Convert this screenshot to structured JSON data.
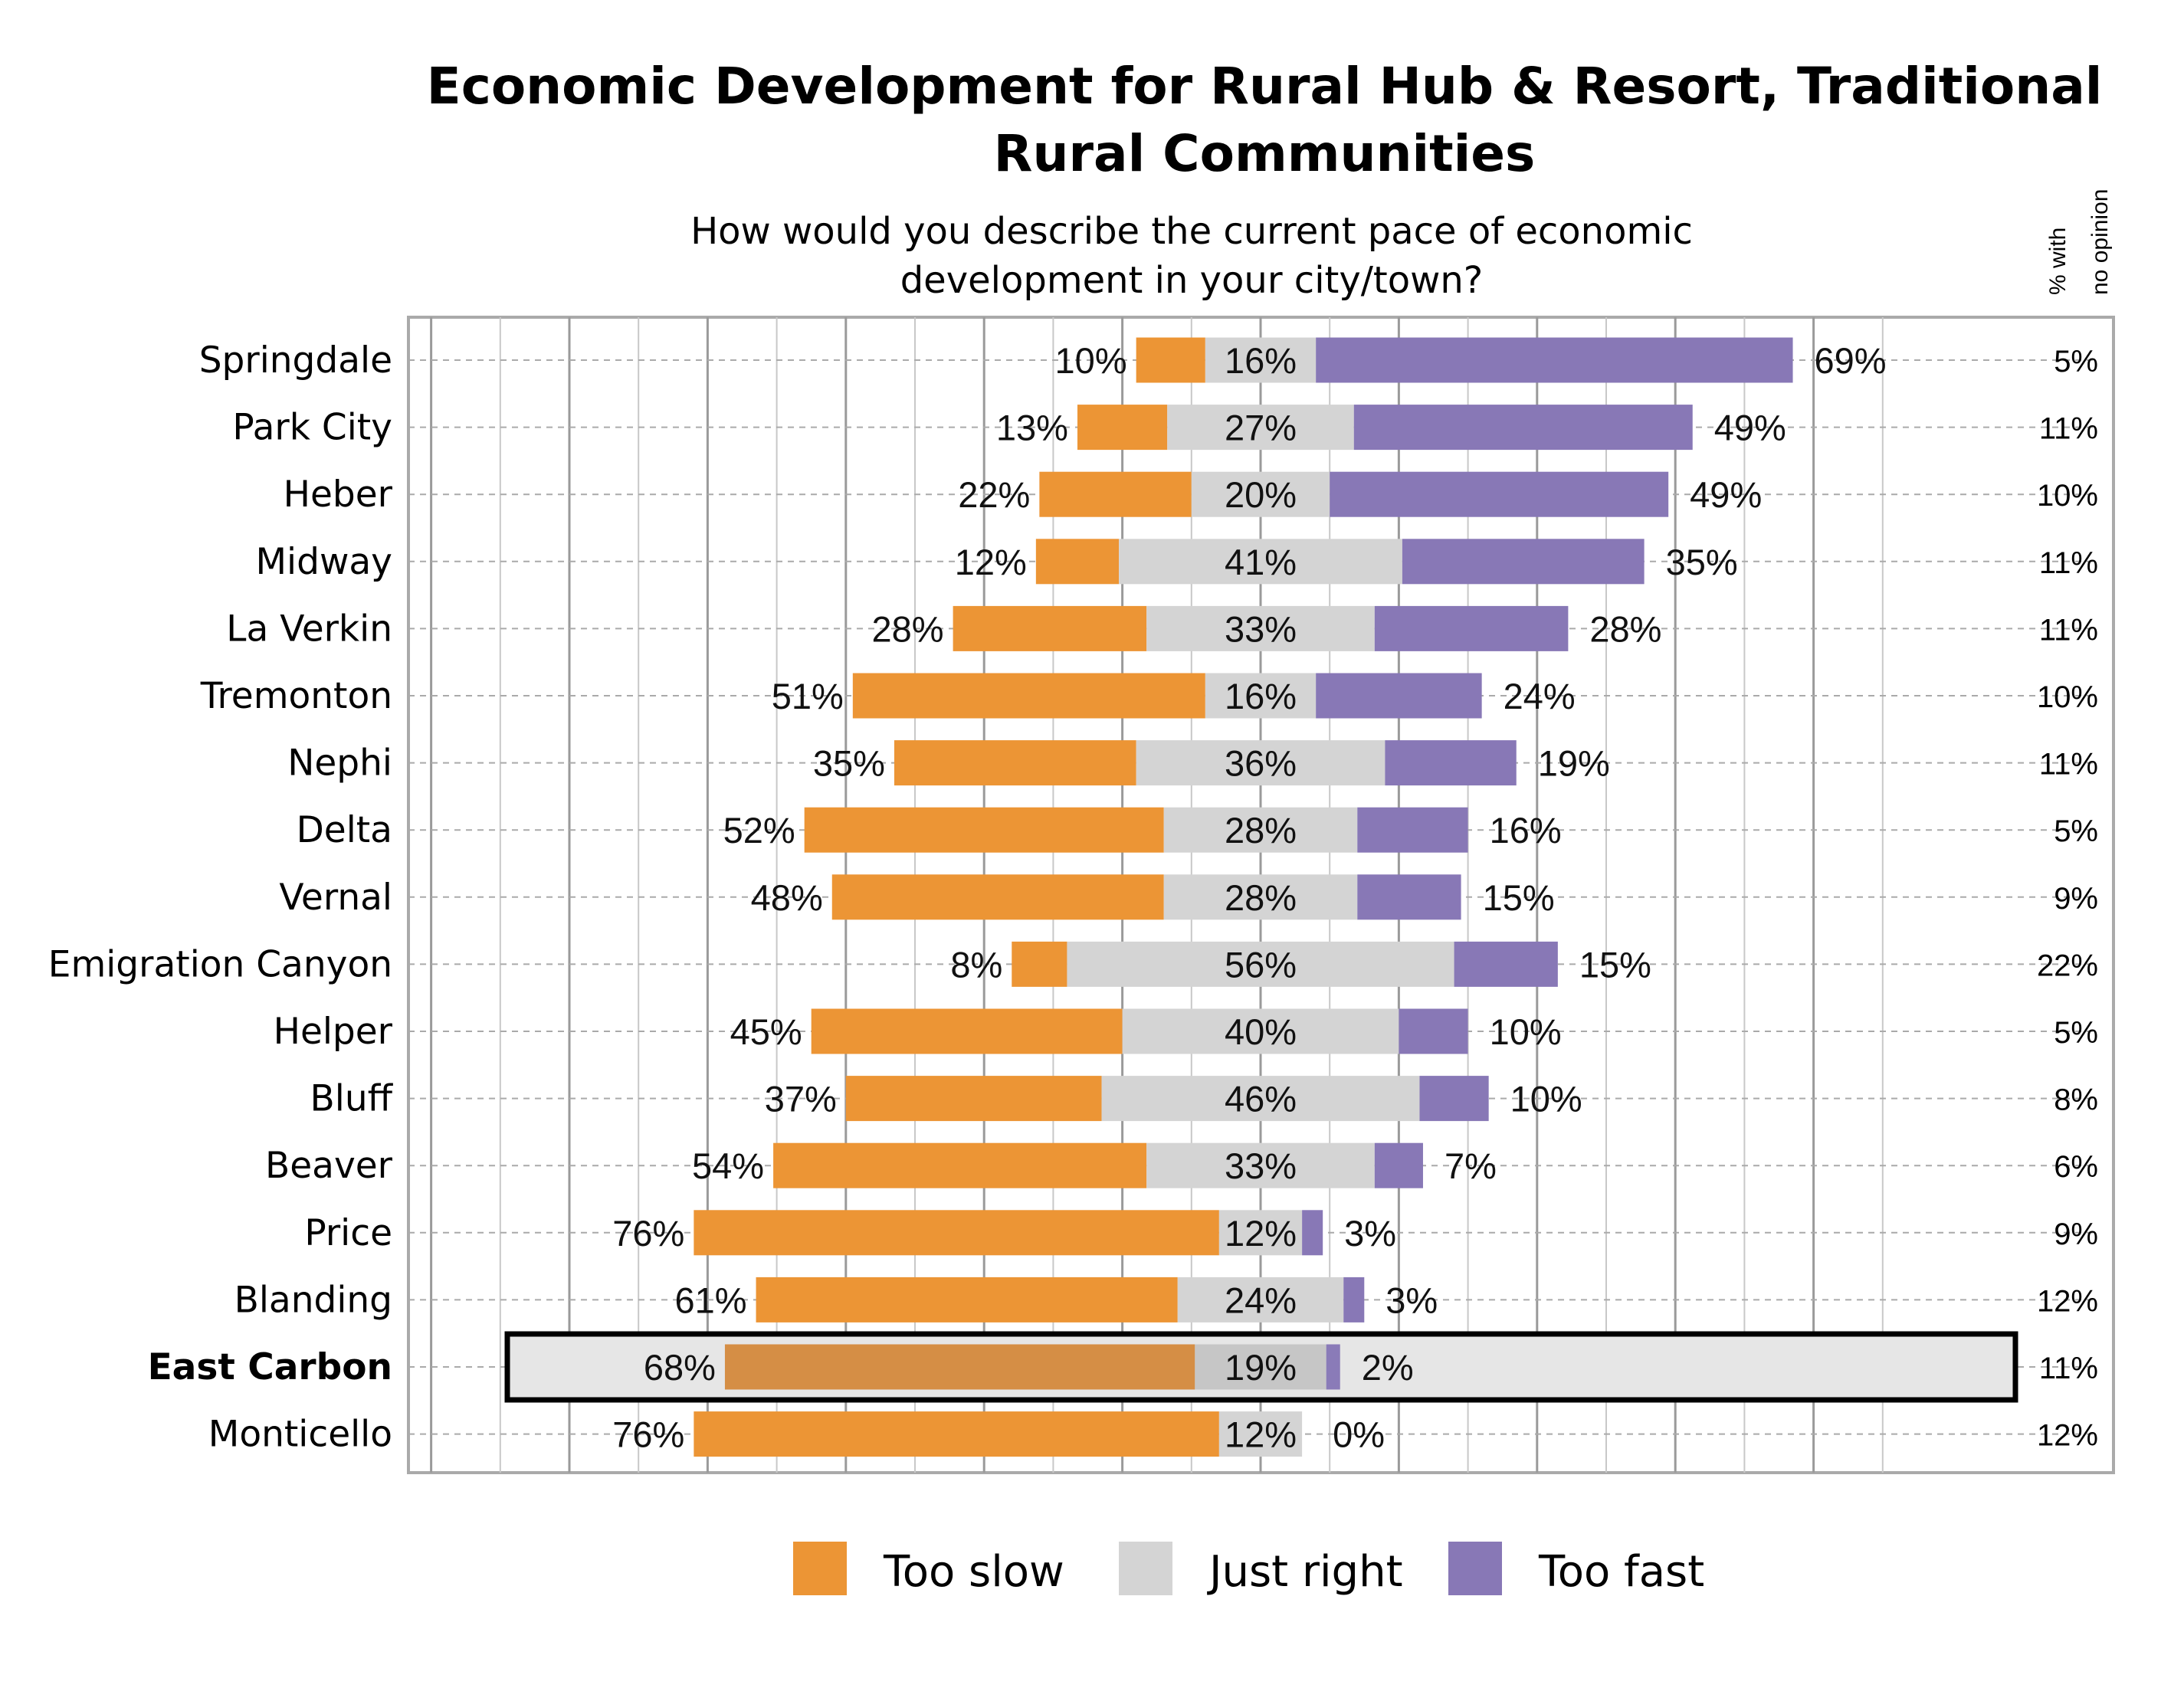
{
  "chart_data": {
    "type": "bar",
    "subtype": "diverging-stacked-horizontal",
    "title": "Economic Development for Rural Hub & Resort, Traditional Rural Communities",
    "subtitle": "How would you describe the current pace of economic development in your city/town?",
    "no_opinion_header": [
      "% with",
      "no opinion"
    ],
    "categories": [
      "Springdale",
      "Park City",
      "Heber",
      "Midway",
      "La Verkin",
      "Tremonton",
      "Nephi",
      "Delta",
      "Vernal",
      "Emigration Canyon",
      "Helper",
      "Bluff",
      "Beaver",
      "Price",
      "Blanding",
      "East Carbon",
      "Monticello"
    ],
    "highlighted_category": "East Carbon",
    "series": [
      {
        "name": "Too slow",
        "color": "#EC9535",
        "values": [
          10,
          13,
          22,
          12,
          28,
          51,
          35,
          52,
          48,
          8,
          45,
          37,
          54,
          76,
          61,
          68,
          76
        ]
      },
      {
        "name": "Just right",
        "color": "#D4D4D4",
        "values": [
          16,
          27,
          20,
          41,
          33,
          16,
          36,
          28,
          28,
          56,
          40,
          46,
          33,
          12,
          24,
          19,
          12
        ]
      },
      {
        "name": "Too fast",
        "color": "#8878B6",
        "values": [
          69,
          49,
          49,
          35,
          28,
          24,
          19,
          16,
          15,
          15,
          10,
          10,
          7,
          3,
          3,
          2,
          0
        ]
      }
    ],
    "no_opinion": [
      5,
      11,
      10,
      11,
      11,
      10,
      11,
      5,
      9,
      22,
      5,
      8,
      6,
      9,
      12,
      11,
      12
    ],
    "grid": true,
    "legend": "bottom"
  }
}
